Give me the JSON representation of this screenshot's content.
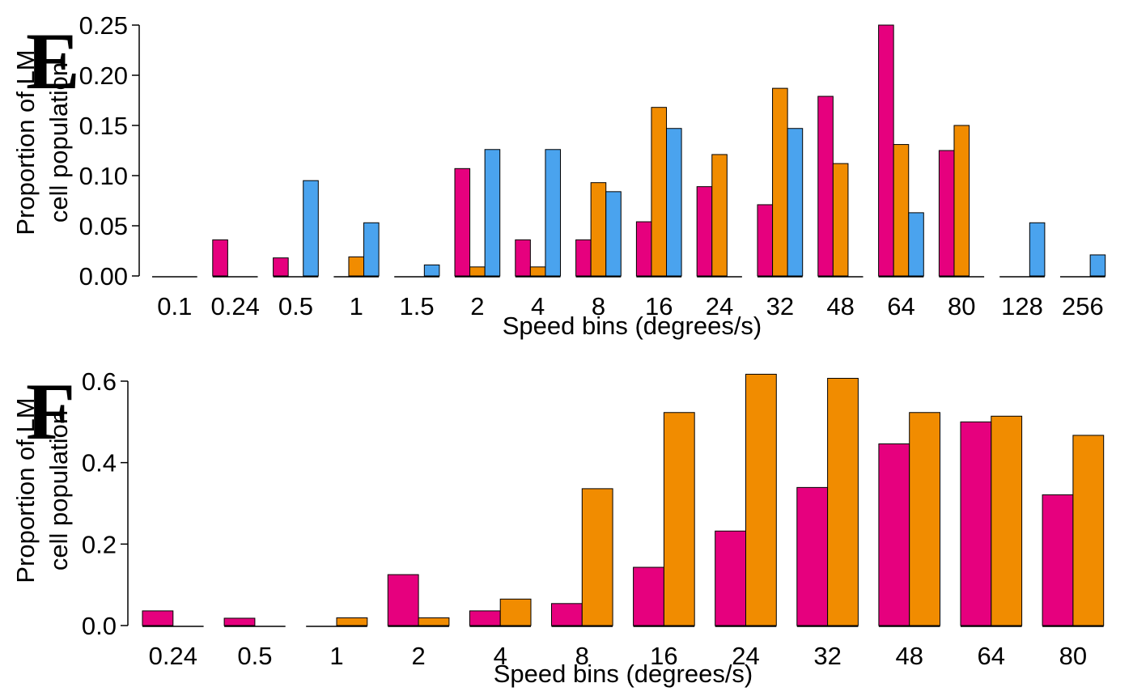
{
  "colors": {
    "series_magenta": "#E6007E",
    "series_orange": "#F18C00",
    "series_blue": "#4AA3EE"
  },
  "chart_data": [
    {
      "type": "bar",
      "panel_label": "E",
      "categories": [
        "0.1",
        "0.24",
        "0.5",
        "1",
        "1.5",
        "2",
        "4",
        "8",
        "16",
        "24",
        "32",
        "48",
        "64",
        "80",
        "128",
        "256"
      ],
      "series": [
        {
          "color": "#E6007E",
          "values": [
            0,
            0.036,
            0.018,
            0,
            0,
            0.107,
            0.036,
            0.036,
            0.054,
            0.089,
            0.071,
            0.179,
            0.25,
            0.125,
            0,
            0
          ]
        },
        {
          "color": "#F18C00",
          "values": [
            0,
            0,
            0,
            0.019,
            0,
            0.009,
            0.009,
            0.093,
            0.168,
            0.121,
            0.187,
            0.112,
            0.131,
            0.15,
            0,
            0
          ]
        },
        {
          "color": "#4AA3EE",
          "values": [
            0,
            0,
            0.095,
            0.053,
            0.011,
            0.126,
            0.126,
            0.084,
            0.147,
            0,
            0.147,
            0,
            0.063,
            0,
            0.053,
            0.021
          ]
        }
      ],
      "yticks": [
        "0.00",
        "0.05",
        "0.10",
        "0.15",
        "0.20",
        "0.25"
      ],
      "ylim": [
        0,
        0.25
      ],
      "xlabel": "Speed bins (degrees/s)",
      "ylabel_line1": "Proportion of LM",
      "ylabel_line2": "cell population"
    },
    {
      "type": "bar",
      "panel_label": "F",
      "categories": [
        "0.24",
        "0.5",
        "1",
        "2",
        "4",
        "8",
        "16",
        "24",
        "32",
        "48",
        "64",
        "80"
      ],
      "series": [
        {
          "color": "#E6007E",
          "values": [
            0.036,
            0.018,
            0,
            0.125,
            0.036,
            0.054,
            0.143,
            0.232,
            0.339,
            0.446,
            0.5,
            0.321
          ]
        },
        {
          "color": "#F18C00",
          "values": [
            0,
            0,
            0.019,
            0.019,
            0.065,
            0.336,
            0.523,
            0.617,
            0.607,
            0.523,
            0.514,
            0.467
          ]
        }
      ],
      "yticks": [
        "0.0",
        "0.2",
        "0.4",
        "0.6"
      ],
      "ylim": [
        0,
        0.6
      ],
      "xlabel": "Speed bins (degrees/s)",
      "ylabel_line1": "Proportion of LM",
      "ylabel_line2": "cell population"
    }
  ]
}
